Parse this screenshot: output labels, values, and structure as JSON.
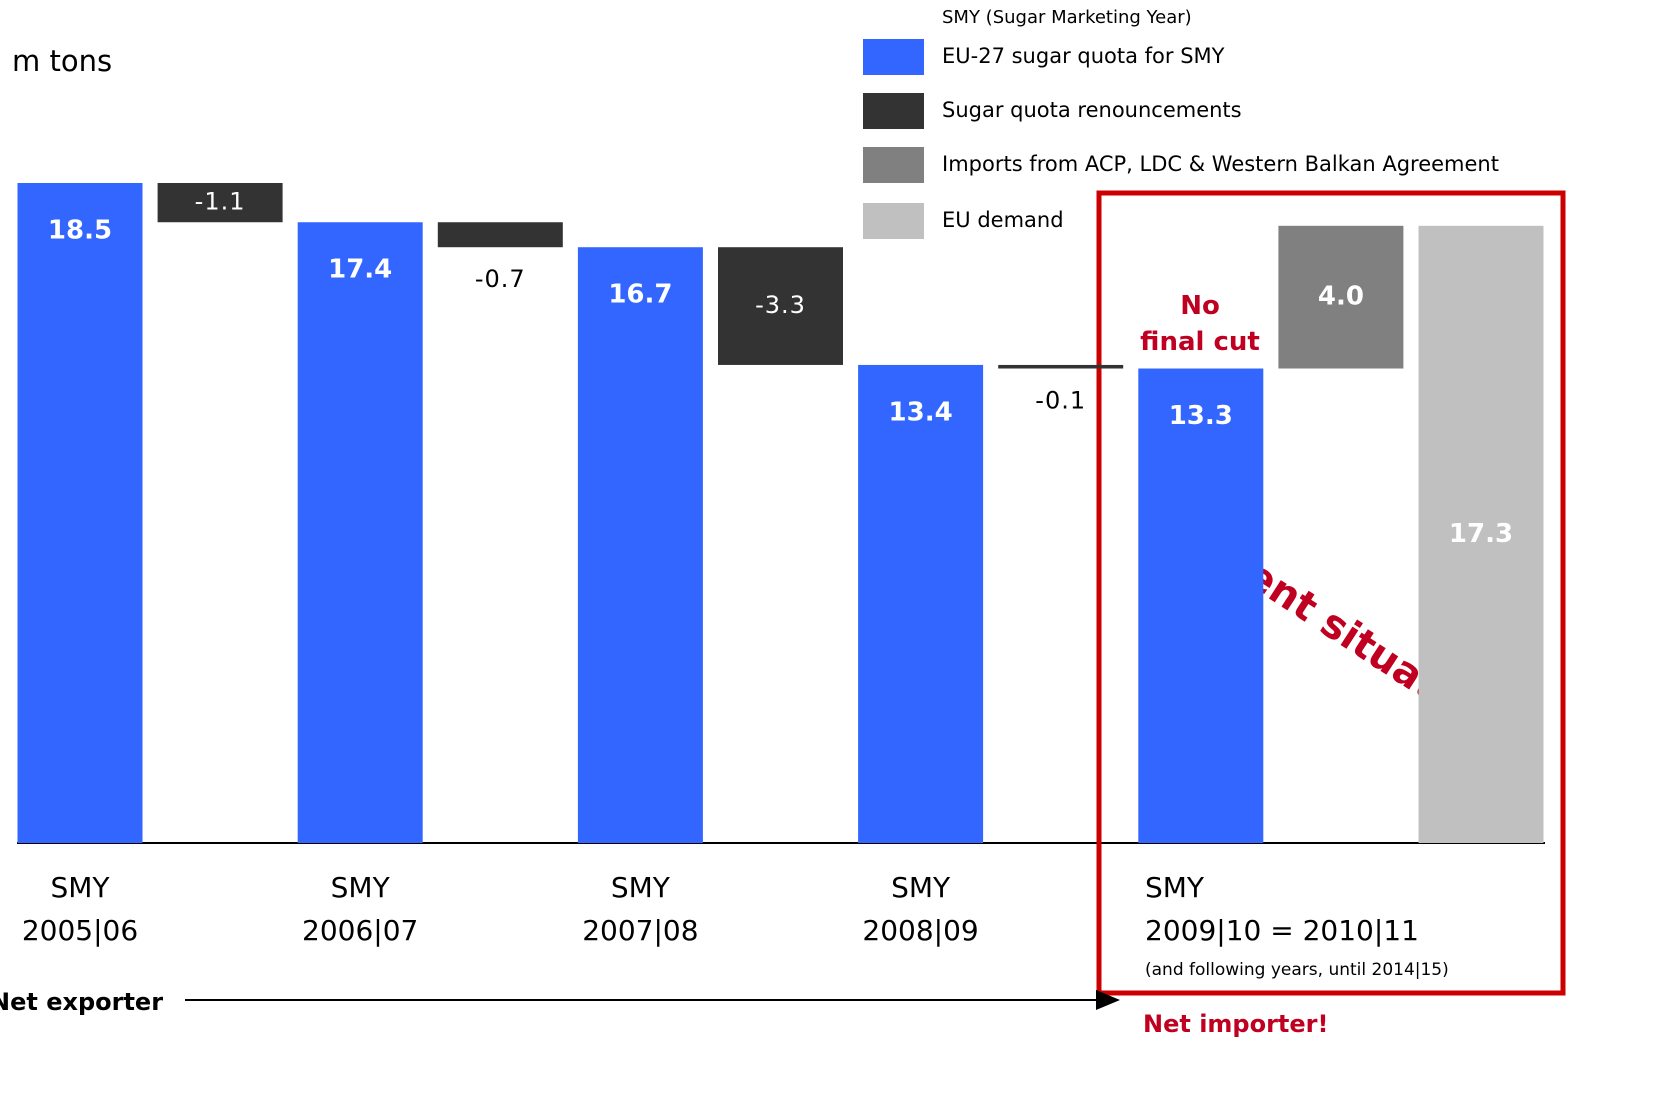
{
  "chart_data": {
    "type": "waterfall",
    "unit_label": "m tons",
    "legend_title": "SMY (Sugar Marketing Year)",
    "series": [
      {
        "name": "EU-27 sugar quota for SMY",
        "color": "#3366ff",
        "kind": "total"
      },
      {
        "name": "Sugar quota renouncements",
        "color": "#333333",
        "kind": "delta"
      },
      {
        "name": "Imports from ACP, LDC & Western Balkan Agreement",
        "color": "#808080",
        "kind": "delta"
      },
      {
        "name": "EU demand",
        "color": "#c0c0c0",
        "kind": "total"
      }
    ],
    "categories": [
      "SMY\n2005|06",
      null,
      "SMY\n2006|07",
      null,
      "SMY\n2007|08",
      null,
      "SMY\n2008|09",
      null,
      "SMY\n2009|10 = 2010|11",
      null,
      null
    ],
    "values": [
      18.5,
      -1.1,
      17.4,
      -0.7,
      16.7,
      -3.3,
      13.4,
      -0.1,
      13.3,
      4.0,
      17.3
    ],
    "value_labels": [
      "18.5",
      "-1.1",
      "17.4",
      "-0.7",
      "16.7",
      "-3.3",
      "13.4",
      "-0.1",
      "13.3",
      "4.0",
      "17.3"
    ],
    "value_series": [
      0,
      1,
      0,
      1,
      0,
      1,
      0,
      1,
      0,
      2,
      3
    ],
    "ylim": [
      0,
      18.5
    ],
    "annotations": {
      "no_final_cut": "No\nfinal cut",
      "current_situation": "Current situation",
      "following_years": "(and following years, until 2014|15)",
      "net_exporter": "Net exporter",
      "net_importer": "Net importer!"
    }
  }
}
